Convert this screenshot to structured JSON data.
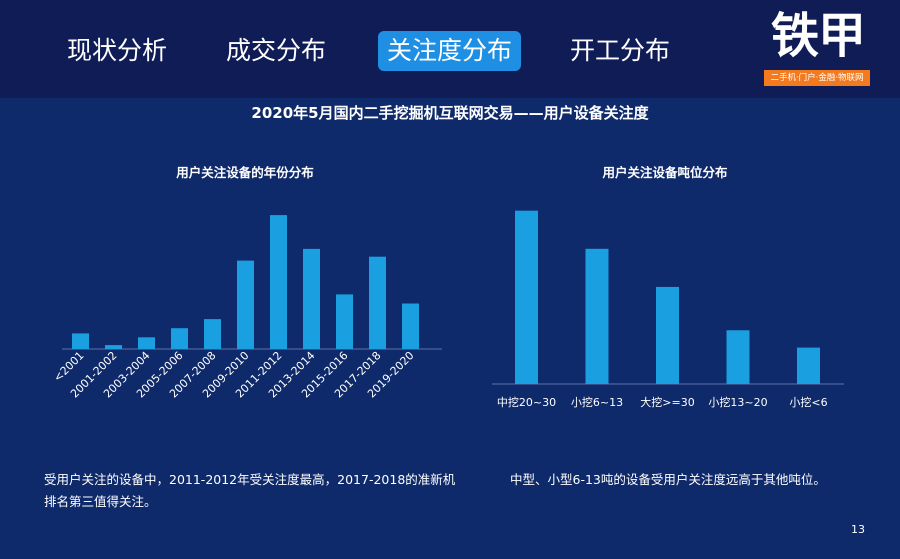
{
  "nav": {
    "tabs": [
      {
        "label": "现状分析",
        "active": false
      },
      {
        "label": "成交分布",
        "active": false
      },
      {
        "label": "关注度分布",
        "active": true
      },
      {
        "label": "开工分布",
        "active": false
      }
    ]
  },
  "logo": {
    "text": "铁甲",
    "tagline": "二手机·门户·金融·物联网",
    "accent_color": "#f47a1f"
  },
  "slide_title": "2020年5月国内二手挖掘机互联网交易——用户设备关注度",
  "colors": {
    "background": "#0f2a6b",
    "header": "#101c56",
    "bar": "#1a9fe0",
    "active_tab": "#1f8fe4"
  },
  "chart_data": [
    {
      "type": "bar",
      "title": "用户关注设备的年份分布",
      "categories": [
        "<2001",
        "2001-2002",
        "2003-2004",
        "2005-2006",
        "2007-2008",
        "2009-2010",
        "2011-2012",
        "2013-2014",
        "2015-2016",
        "2017-2018",
        "2019-2020"
      ],
      "values": [
        1.2,
        0.3,
        0.9,
        1.6,
        2.3,
        6.8,
        10.3,
        7.7,
        4.2,
        7.1,
        3.5
      ],
      "ylim": [
        0,
        11
      ],
      "grid": false,
      "legend": "none"
    },
    {
      "type": "bar",
      "title": "用户关注设备吨位分布",
      "categories": [
        "中挖20~30",
        "小挖6~13",
        "大挖>=30",
        "小挖13~20",
        "小挖<6"
      ],
      "values": [
        10,
        7.8,
        5.6,
        3.1,
        2.1
      ],
      "ylim": [
        0,
        10.5
      ],
      "grid": false,
      "legend": "none"
    }
  ],
  "captions": {
    "left": "受用户关注的设备中，2011-2012年受关注度最高，2017-2018的准新机排名第三值得关注。",
    "right": "中型、小型6-13吨的设备受用户关注度远高于其他吨位。"
  },
  "page_number": "13"
}
